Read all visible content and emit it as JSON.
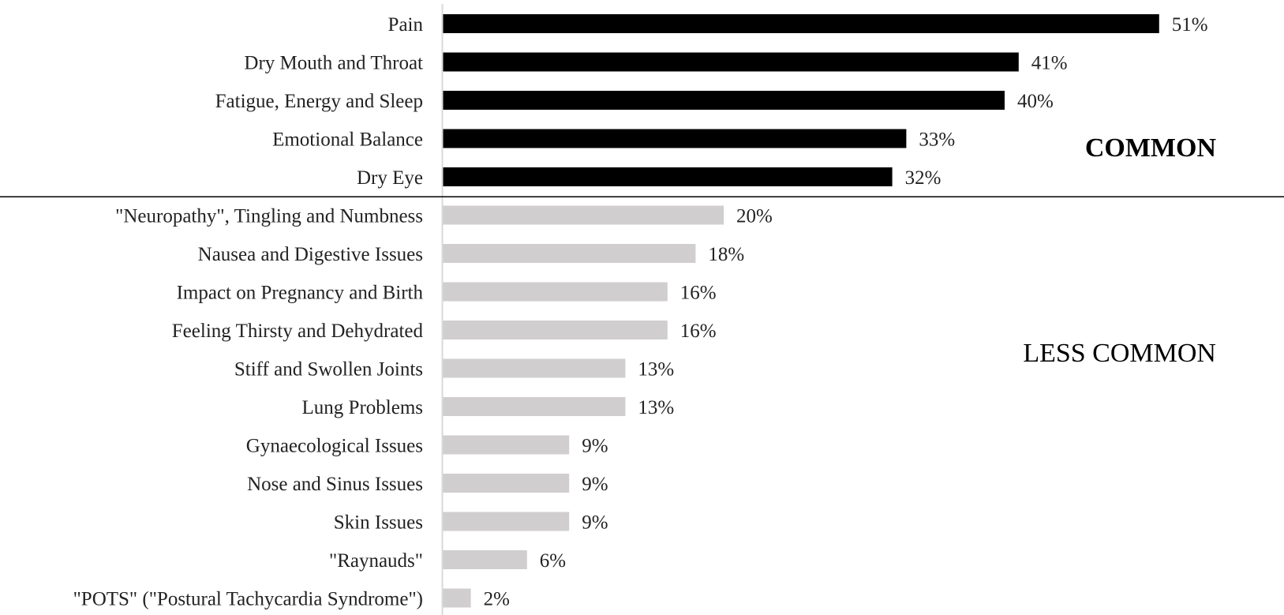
{
  "chart_data": {
    "type": "bar",
    "orientation": "horizontal",
    "value_suffix": "%",
    "xlim": [
      0,
      55
    ],
    "grid": false,
    "legend": "none",
    "colors": {
      "common": "#000000",
      "less_common": "#d0cece",
      "axis": "#d9d9d9",
      "separator": "#000000"
    },
    "groups": [
      {
        "name": "COMMON",
        "style": "common",
        "items": [
          {
            "category": "Pain",
            "value": 51
          },
          {
            "category": "Dry Mouth and Throat",
            "value": 41
          },
          {
            "category": "Fatigue, Energy and Sleep",
            "value": 40
          },
          {
            "category": "Emotional Balance",
            "value": 33
          },
          {
            "category": "Dry Eye",
            "value": 32
          }
        ]
      },
      {
        "name": "LESS COMMON",
        "style": "less_common",
        "items": [
          {
            "category": "\"Neuropathy\", Tingling and Numbness",
            "value": 20
          },
          {
            "category": "Nausea and Digestive Issues",
            "value": 18
          },
          {
            "category": "Impact on Pregnancy and Birth",
            "value": 16
          },
          {
            "category": "Feeling Thirsty and Dehydrated",
            "value": 16
          },
          {
            "category": "Stiff and Swollen Joints",
            "value": 13
          },
          {
            "category": "Lung Problems",
            "value": 13
          },
          {
            "category": "Gynaecological Issues",
            "value": 9
          },
          {
            "category": "Nose and Sinus Issues",
            "value": 9
          },
          {
            "category": "Skin Issues",
            "value": 9
          },
          {
            "category": "\"Raynauds\"",
            "value": 6
          },
          {
            "category": "\"POTS\" (\"Postural Tachycardia Syndrome\")",
            "value": 2
          }
        ]
      }
    ]
  }
}
